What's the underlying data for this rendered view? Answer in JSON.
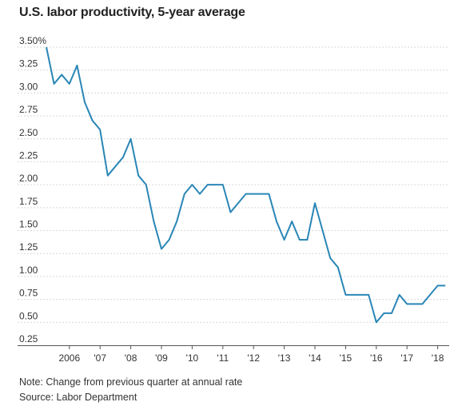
{
  "title": "U.S. labor productivity, 5-year average",
  "note": "Note: Change from previous quarter at annual rate",
  "source": "Source: Labor Department",
  "colors": {
    "line": "#2a86b6",
    "grid": "#d9d9d9",
    "axis": "#555555",
    "text": "#333333"
  },
  "chart_data": {
    "type": "line",
    "title": "U.S. labor productivity, 5-year average",
    "xlabel": "",
    "ylabel": "",
    "ylim": [
      0.25,
      3.5
    ],
    "yticks": [
      0.25,
      0.5,
      0.75,
      1.0,
      1.25,
      1.5,
      1.75,
      2.0,
      2.25,
      2.5,
      2.75,
      3.0,
      3.25,
      3.5
    ],
    "ytick_labels": [
      "0.25",
      "0.50",
      "0.75",
      "1.00",
      "1.25",
      "1.50",
      "1.75",
      "2.00",
      "2.25",
      "2.50",
      "2.75",
      "3.00",
      "3.25",
      "3.50%"
    ],
    "xlim": [
      2005.25,
      2018.375
    ],
    "xticks": [
      2006,
      2007,
      2008,
      2009,
      2010,
      2011,
      2012,
      2013,
      2014,
      2015,
      2016,
      2017,
      2018
    ],
    "xtick_labels": [
      "2006",
      "'07",
      "'08",
      "'09",
      "'10",
      "'11",
      "'12",
      "'13",
      "'14",
      "'15",
      "'16",
      "'17",
      "'18"
    ],
    "grid": true,
    "series": [
      {
        "x": [
          2005.25,
          2005.5,
          2005.75,
          2006.0,
          2006.25,
          2006.5,
          2006.75,
          2007.0,
          2007.25,
          2007.5,
          2007.75,
          2008.0,
          2008.25,
          2008.5,
          2008.75,
          2009.0,
          2009.25,
          2009.5,
          2009.75,
          2010.0,
          2010.25,
          2010.5,
          2010.75,
          2011.0,
          2011.25,
          2011.5,
          2011.75,
          2012.0,
          2012.25,
          2012.5,
          2012.75,
          2013.0,
          2013.25,
          2013.5,
          2013.75,
          2014.0,
          2014.25,
          2014.5,
          2014.75,
          2015.0,
          2015.25,
          2015.5,
          2015.75,
          2016.0,
          2016.25,
          2016.5,
          2016.75,
          2017.0,
          2017.25,
          2017.5,
          2017.75,
          2018.0,
          2018.25
        ],
        "values": [
          3.5,
          3.1,
          3.2,
          3.1,
          3.3,
          2.9,
          2.7,
          2.6,
          2.1,
          2.2,
          2.3,
          2.5,
          2.1,
          2.0,
          1.6,
          1.3,
          1.4,
          1.6,
          1.9,
          2.0,
          1.9,
          2.0,
          2.0,
          2.0,
          1.7,
          1.8,
          1.9,
          1.9,
          1.9,
          1.9,
          1.6,
          1.4,
          1.6,
          1.4,
          1.4,
          1.8,
          1.5,
          1.2,
          1.1,
          0.8,
          0.8,
          0.8,
          0.8,
          0.5,
          0.6,
          0.6,
          0.8,
          0.7,
          0.7,
          0.7,
          0.8,
          0.9,
          0.9
        ]
      }
    ]
  }
}
